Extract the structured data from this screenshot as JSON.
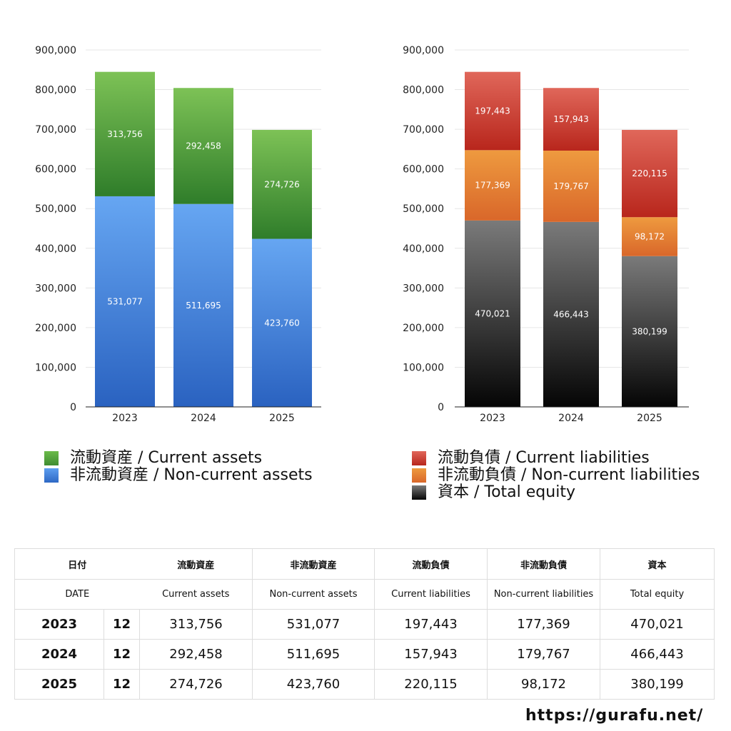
{
  "chart_data": [
    {
      "type": "bar",
      "stacked": true,
      "categories": [
        "2023",
        "2024",
        "2025"
      ],
      "yticks": [
        "900,000",
        "800,000",
        "700,000",
        "600,000",
        "500,000",
        "400,000",
        "300,000",
        "200,000",
        "100,000",
        "0"
      ],
      "ylim": [
        0,
        900000
      ],
      "grid": true,
      "series": [
        {
          "name": "非流動資産 / Non-current assets",
          "values": [
            531077,
            511695,
            423760
          ],
          "labels": [
            "531,077",
            "511,695",
            "423,760"
          ],
          "color_top": "#66a6f2",
          "color_bottom": "#2a62c0"
        },
        {
          "name": "流動資産 / Current assets",
          "values": [
            313756,
            292458,
            274726
          ],
          "labels": [
            "313,756",
            "292,458",
            "274,726"
          ],
          "color_top": "#7dc256",
          "color_bottom": "#2f7d2a"
        }
      ]
    },
    {
      "type": "bar",
      "stacked": true,
      "categories": [
        "2023",
        "2024",
        "2025"
      ],
      "yticks": [
        "900,000",
        "800,000",
        "700,000",
        "600,000",
        "500,000",
        "400,000",
        "300,000",
        "200,000",
        "100,000",
        "0"
      ],
      "ylim": [
        0,
        900000
      ],
      "grid": true,
      "series": [
        {
          "name": "資本 / Total equity",
          "values": [
            470021,
            466443,
            380199
          ],
          "labels": [
            "470,021",
            "466,443",
            "380,199"
          ],
          "color_top": "#7a7a7a",
          "color_bottom": "#050505"
        },
        {
          "name": "非流動負債 / Non-current liabilities",
          "values": [
            177369,
            179767,
            98172
          ],
          "labels": [
            "177,369",
            "179,767",
            "98,172"
          ],
          "color_top": "#ee9a3f",
          "color_bottom": "#d9672a"
        },
        {
          "name": "流動負債 / Current liabilities",
          "values": [
            197443,
            157943,
            220115
          ],
          "labels": [
            "197,443",
            "157,943",
            "220,115"
          ],
          "color_top": "#e0675a",
          "color_bottom": "#b8261c"
        }
      ]
    }
  ],
  "legend_left": [
    {
      "label": "流動資産 / Current assets",
      "color": "#4ea23c"
    },
    {
      "label": "非流動資産 / Non-current assets",
      "color": "#3b7fd9"
    }
  ],
  "legend_right": [
    {
      "label": "流動負債 / Current liabilities",
      "color": "#cf3c30"
    },
    {
      "label": "非流動負債 / Non-current liabilities",
      "color": "#e68230"
    },
    {
      "label": "資本 / Total equity",
      "color": "#222222"
    }
  ],
  "table": {
    "header_jp": [
      "日付",
      "流動資産",
      "非流動資産",
      "流動負債",
      "非流動負債",
      "資本"
    ],
    "header_en": [
      "DATE",
      "Current assets",
      "Non-current assets",
      "Current liabilities",
      "Non-current liabilities",
      "Total equity"
    ],
    "rows": [
      {
        "year": "2023",
        "month": "12",
        "values": [
          "313,756",
          "531,077",
          "197,443",
          "177,369",
          "470,021"
        ]
      },
      {
        "year": "2024",
        "month": "12",
        "values": [
          "292,458",
          "511,695",
          "157,943",
          "179,767",
          "466,443"
        ]
      },
      {
        "year": "2025",
        "month": "12",
        "values": [
          "274,726",
          "423,760",
          "220,115",
          "98,172",
          "380,199"
        ]
      }
    ]
  },
  "footer_url": "https://gurafu.net/"
}
